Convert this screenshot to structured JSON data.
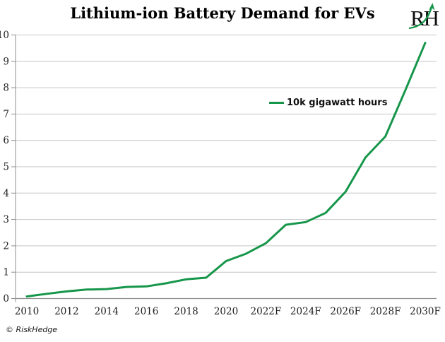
{
  "page": {
    "title": "Lithium-ion Battery Demand for EVs"
  },
  "logo": {
    "text": "RH",
    "arrow_icon": "growth-arrow-icon"
  },
  "legend": {
    "label": "10k gigawatt hours"
  },
  "footer": {
    "copyright": "© RiskHedge"
  },
  "colors": {
    "line_green": "#16964a",
    "gridline": "#c6c6c6",
    "axis": "#8c8c8c",
    "title_text": "#000000",
    "axis_text": "#1c1c1c"
  },
  "chart_data": {
    "type": "line",
    "title": "Lithium-ion Battery Demand for EVs",
    "xlabel": "",
    "ylabel": "",
    "unit": "10k gigawatt hours",
    "ylim": [
      0,
      10
    ],
    "yticks": [
      0,
      1,
      2,
      3,
      4,
      5,
      6,
      7,
      8,
      9,
      10
    ],
    "grid": "horizontal",
    "legend_position": "center-right",
    "xticklabels": [
      "2010",
      "2012",
      "2014",
      "2016",
      "2018",
      "2020",
      "2022F",
      "2024F",
      "2026F",
      "2028F",
      "2030F"
    ],
    "x": [
      2010,
      2011,
      2012,
      2013,
      2014,
      2015,
      2016,
      2017,
      2018,
      2019,
      2020,
      2021,
      2022,
      2023,
      2024,
      2025,
      2026,
      2027,
      2028,
      2029,
      2030
    ],
    "series": [
      {
        "name": "10k gigawatt hours",
        "values": [
          0.08,
          0.18,
          0.27,
          0.34,
          0.36,
          0.44,
          0.46,
          0.58,
          0.73,
          0.79,
          1.42,
          1.7,
          2.1,
          2.8,
          2.9,
          3.25,
          4.05,
          5.35,
          6.15,
          7.9,
          9.7
        ]
      }
    ]
  }
}
